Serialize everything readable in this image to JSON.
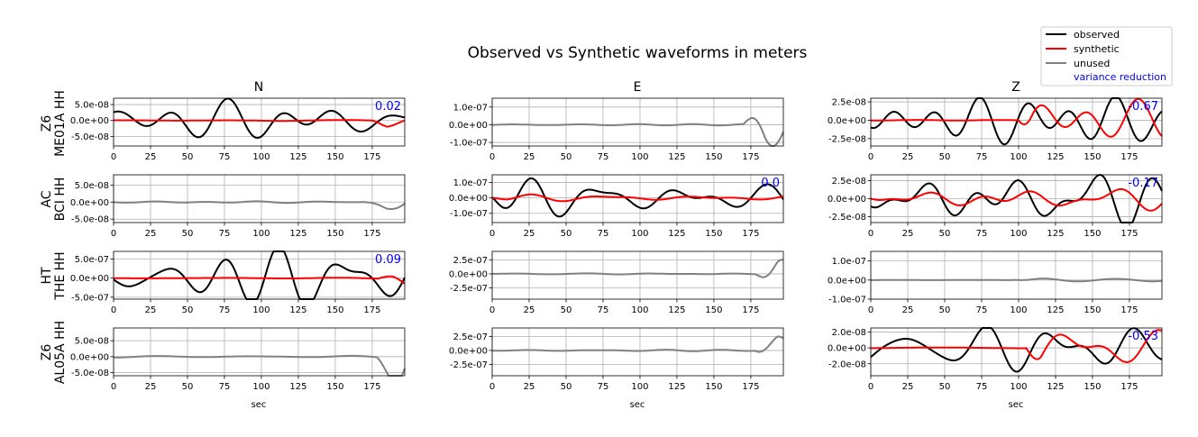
{
  "title": "Observed vs Synthetic waveforms in meters",
  "columns": [
    "N",
    "E",
    "Z"
  ],
  "rows": [
    {
      "line1": "Z6",
      "line2": "ME01A HH"
    },
    {
      "line1": "AC",
      "line2": "BCI HH"
    },
    {
      "line1": "HT",
      "line2": "THE HH"
    },
    {
      "line1": "Z6",
      "line2": "AL05A HH"
    }
  ],
  "xlabel": "sec",
  "legend": {
    "observed": "observed",
    "synthetic": "synthetic",
    "unused": "unused",
    "variance_reduction": "variance reduction"
  },
  "colors": {
    "observed": "#000000",
    "synthetic": "#ff0000",
    "unused": "#808080",
    "variance_reduction": "#0000ff"
  },
  "chart_data": {
    "type": "line",
    "x_range": [
      0,
      197
    ],
    "x_ticks": [
      0,
      25,
      50,
      75,
      100,
      125,
      150,
      175
    ],
    "grid": true,
    "legend_placement": "top-right",
    "panels": [
      {
        "row": 0,
        "col": 0,
        "status": "used",
        "variance_reduction": "0.02",
        "ylim": [
          -8e-08,
          7e-08
        ],
        "y_ticks": [
          5e-08,
          0,
          -5e-08
        ],
        "y_tick_labels": [
          "5.0e-08",
          "0.0e+00",
          "-5.0e-08"
        ],
        "obs_amp": 6e-08,
        "syn_amp": 3.5e-08,
        "syn_from": 175,
        "seed": 1
      },
      {
        "row": 0,
        "col": 1,
        "status": "unused",
        "ylim": [
          -1.2e-07,
          1.5e-07
        ],
        "y_ticks": [
          1e-07,
          0,
          -1e-07
        ],
        "y_tick_labels": [
          "1.0e-07",
          "0.0e+00",
          "-1.0e-07"
        ],
        "obs_amp": 1.4e-07,
        "quiet_until": 170,
        "seed": 2
      },
      {
        "row": 0,
        "col": 2,
        "status": "used",
        "variance_reduction": "-0.67",
        "ylim": [
          -3.5e-08,
          3e-08
        ],
        "y_ticks": [
          2.5e-08,
          0,
          -2.5e-08
        ],
        "y_tick_labels": [
          "2.5e-08",
          "0.0e+00",
          "-2.5e-08"
        ],
        "obs_amp": 2.5e-08,
        "syn_amp": 2.2e-08,
        "syn_from": 100,
        "seed": 3
      },
      {
        "row": 1,
        "col": 0,
        "status": "unused",
        "ylim": [
          -6e-08,
          8e-08
        ],
        "y_ticks": [
          5e-08,
          0,
          -5e-08
        ],
        "y_tick_labels": [
          "5.0e-08",
          "0.0e+00",
          "-5.0e-08"
        ],
        "obs_amp": 7.5e-08,
        "quiet_until": 170,
        "seed": 4
      },
      {
        "row": 1,
        "col": 1,
        "status": "used",
        "variance_reduction": "0.0",
        "ylim": [
          -1.6e-07,
          1.5e-07
        ],
        "y_ticks": [
          1e-07,
          0,
          -1e-07
        ],
        "y_tick_labels": [
          "1.0e-07",
          "0.0e+00",
          "-1.0e-07"
        ],
        "obs_amp": 1.4e-07,
        "syn_amp": 2.5e-08,
        "syn_from": 0,
        "seed": 5
      },
      {
        "row": 1,
        "col": 2,
        "status": "used",
        "variance_reduction": "-0.17",
        "ylim": [
          -3.3e-08,
          3.3e-08
        ],
        "y_ticks": [
          2.5e-08,
          0,
          -2.5e-08
        ],
        "y_tick_labels": [
          "2.5e-08",
          "0.0e+00",
          "-2.5e-08"
        ],
        "obs_amp": 3e-08,
        "syn_amp": 1.2e-08,
        "syn_from": 0,
        "seed": 6
      },
      {
        "row": 2,
        "col": 0,
        "status": "used",
        "variance_reduction": "0.09",
        "ylim": [
          -5.5e-07,
          7e-07
        ],
        "y_ticks": [
          5e-07,
          0,
          -5e-07
        ],
        "y_tick_labels": [
          "5.0e-07",
          "0.0e+00",
          "-5.0e-07"
        ],
        "obs_amp": 6e-07,
        "syn_amp": 3.5e-07,
        "syn_from": 180,
        "seed": 7
      },
      {
        "row": 2,
        "col": 1,
        "status": "unused",
        "ylim": [
          -4.5e-07,
          4e-07
        ],
        "y_ticks": [
          2.5e-07,
          0,
          -2.5e-07
        ],
        "y_tick_labels": [
          "2.5e-07",
          "0.0e+00",
          "-2.5e-07"
        ],
        "obs_amp": 3.5e-07,
        "quiet_until": 178,
        "seed": 8
      },
      {
        "row": 2,
        "col": 2,
        "status": "unused",
        "ylim": [
          -1e-07,
          1.5e-07
        ],
        "y_ticks": [
          1e-07,
          0,
          -1e-07
        ],
        "y_tick_labels": [
          "1.0e-07",
          "0.0e+00",
          "-1.0e-07"
        ],
        "obs_amp": 2e-08,
        "quiet_until": 100,
        "seed": 9
      },
      {
        "row": 3,
        "col": 0,
        "status": "unused",
        "ylim": [
          -6e-08,
          9e-08
        ],
        "y_ticks": [
          5e-08,
          0,
          -5e-08
        ],
        "y_tick_labels": [
          "5.0e-08",
          "0.0e+00",
          "-5.0e-08"
        ],
        "obs_amp": 8e-08,
        "quiet_until": 178,
        "seed": 10
      },
      {
        "row": 3,
        "col": 1,
        "status": "unused",
        "ylim": [
          -4.5e-07,
          4e-07
        ],
        "y_ticks": [
          2.5e-07,
          0,
          -2.5e-07
        ],
        "y_tick_labels": [
          "2.5e-07",
          "0.0e+00",
          "-2.5e-07"
        ],
        "obs_amp": 3.5e-07,
        "quiet_until": 178,
        "seed": 11
      },
      {
        "row": 3,
        "col": 2,
        "status": "used",
        "variance_reduction": "-0.53",
        "ylim": [
          -3.5e-08,
          2.5e-08
        ],
        "y_ticks": [
          2e-08,
          0,
          -2e-08
        ],
        "y_tick_labels": [
          "2.0e-08",
          "0.0e+00",
          "-2.0e-08"
        ],
        "obs_amp": 2.2e-08,
        "syn_amp": 2e-08,
        "syn_from": 105,
        "seed": 12
      }
    ]
  }
}
